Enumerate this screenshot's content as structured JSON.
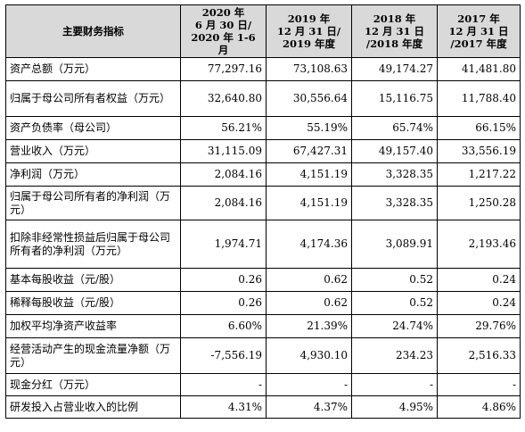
{
  "table": {
    "header": {
      "label": "主要财务指标",
      "cols": [
        "2020 年\n6 月 30 日/\n2020 年 1-6 月",
        "2019 年\n12 月 31 日/\n2019 年度",
        "2018 年\n12 月 31 日\n/2018 年度",
        "2017 年\n12 月 31 日\n/2017 年度"
      ]
    },
    "rows": [
      {
        "label": "资产总额（万元）",
        "values": [
          "77,297.16",
          "73,108.63",
          "49,174.27",
          "41,481.80"
        ]
      },
      {
        "label": "归属于母公司所有者权益（万元）",
        "values": [
          "32,640.80",
          "30,556.64",
          "15,116.75",
          "11,788.40"
        ]
      },
      {
        "label": "资产负债率（母公司）",
        "values": [
          "56.21%",
          "55.19%",
          "65.74%",
          "66.15%"
        ]
      },
      {
        "label": "营业收入（万元）",
        "values": [
          "31,115.09",
          "67,427.31",
          "49,157.40",
          "33,556.19"
        ]
      },
      {
        "label": "净利润（万元）",
        "values": [
          "2,084.16",
          "4,151.19",
          "3,328.35",
          "1,217.22"
        ]
      },
      {
        "label": "归属于母公司所有者的净利润（万元）",
        "values": [
          "2,084.16",
          "4,151.19",
          "3,328.35",
          "1,250.28"
        ]
      },
      {
        "label": "扣除非经常性损益后归属于母公司所有者的净利润（万元）",
        "values": [
          "1,974.71",
          "4,174.36",
          "3,089.91",
          "2,193.46"
        ]
      },
      {
        "label": "基本每股收益（元/股）",
        "values": [
          "0.26",
          "0.62",
          "0.52",
          "0.24"
        ]
      },
      {
        "label": "稀释每股收益（元/股）",
        "values": [
          "0.26",
          "0.62",
          "0.52",
          "0.24"
        ]
      },
      {
        "label": "加权平均净资产收益率",
        "values": [
          "6.60%",
          "21.39%",
          "24.74%",
          "29.76%"
        ]
      },
      {
        "label": "经营活动产生的现金流量净额（万元）",
        "values": [
          "-7,556.19",
          "4,930.10",
          "234.23",
          "2,516.33"
        ]
      },
      {
        "label": "现金分红（万元）",
        "values": [
          "-",
          "-",
          "-",
          "-"
        ]
      },
      {
        "label": "研发投入占营业收入的比例",
        "values": [
          "4.31%",
          "4.37%",
          "4.95%",
          "4.86%"
        ]
      }
    ]
  }
}
